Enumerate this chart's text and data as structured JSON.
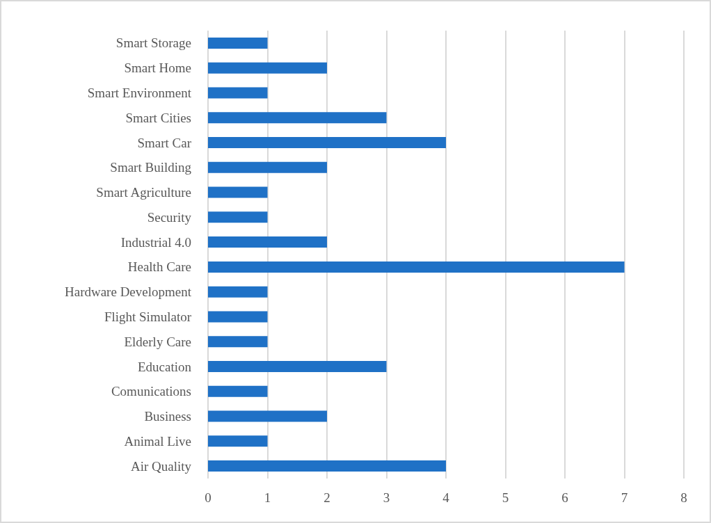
{
  "chart_data": {
    "type": "bar",
    "orientation": "horizontal",
    "categories": [
      "Smart Storage",
      "Smart Home",
      "Smart Environment",
      "Smart Cities",
      "Smart Car",
      "Smart Building",
      "Smart Agriculture",
      "Security",
      "Industrial 4.0",
      "Health Care",
      "Hardware Development",
      "Flight Simulator",
      "Elderly Care",
      "Education",
      "Comunications",
      "Business",
      "Animal Live",
      "Air Quality"
    ],
    "values": [
      1,
      2,
      1,
      3,
      4,
      2,
      1,
      1,
      2,
      7,
      1,
      1,
      1,
      3,
      1,
      2,
      1,
      4
    ],
    "color": "#1f71c6",
    "xlim": [
      0,
      8
    ],
    "xticks": [
      0,
      1,
      2,
      3,
      4,
      5,
      6,
      7,
      8
    ],
    "grid": "x"
  }
}
